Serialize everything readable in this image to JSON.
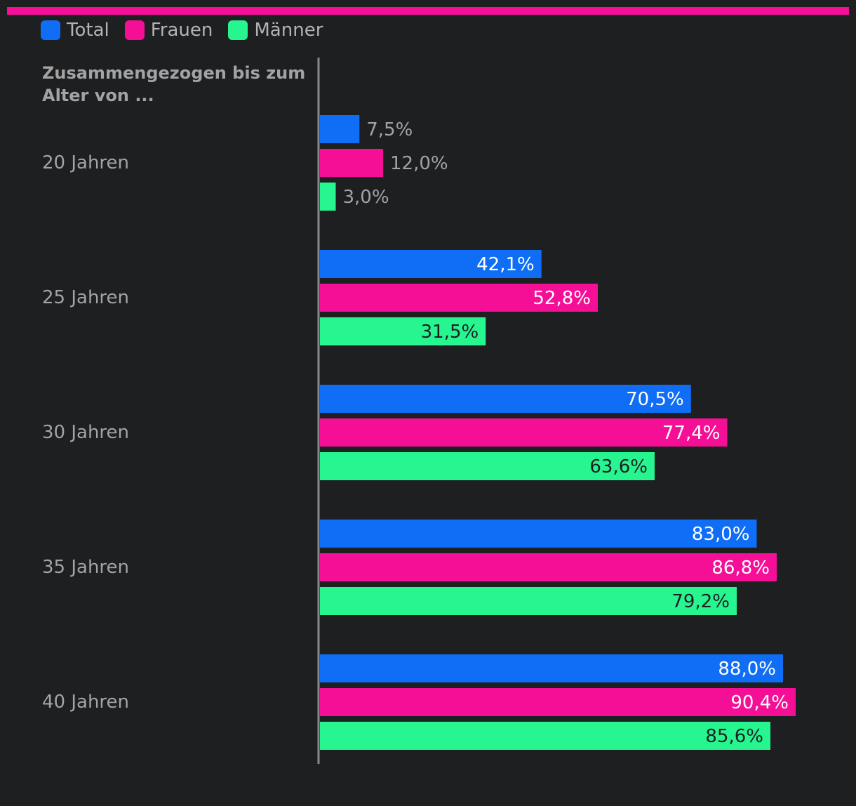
{
  "chart_data": {
    "type": "bar",
    "orientation": "horizontal",
    "row_header": "Zusammengezogen bis zum Alter von ...",
    "categories": [
      "20 Jahren",
      "25 Jahren",
      "30 Jahren",
      "35 Jahren",
      "40 Jahren"
    ],
    "series": [
      {
        "name": "Total",
        "color": "#0f6ef5",
        "values": [
          7.5,
          42.1,
          70.5,
          83.0,
          88.0
        ],
        "labels": [
          "7,5%",
          "42,1%",
          "70,5%",
          "83,0%",
          "88,0%"
        ],
        "label_color_inside": "#ffffff"
      },
      {
        "name": "Frauen",
        "color": "#f50f97",
        "values": [
          12.0,
          52.8,
          77.4,
          86.8,
          90.4
        ],
        "labels": [
          "12,0%",
          "52,8%",
          "77,4%",
          "86,8%",
          "90,4%"
        ],
        "label_color_inside": "#ffffff"
      },
      {
        "name": "Männer",
        "color": "#26f590",
        "values": [
          3.0,
          31.5,
          63.6,
          79.2,
          85.6
        ],
        "labels": [
          "3,0%",
          "31,5%",
          "63,6%",
          "79,2%",
          "85,6%"
        ],
        "label_color_inside": "#1e1f21"
      }
    ],
    "xlim": [
      0,
      100
    ],
    "label_color_outside": "#a3a3a3",
    "category_label_color": "#a3a3a3",
    "axis_color": "#888888",
    "top_accent_color": "#f50f97",
    "legend_position": "top-left",
    "grid": false
  }
}
